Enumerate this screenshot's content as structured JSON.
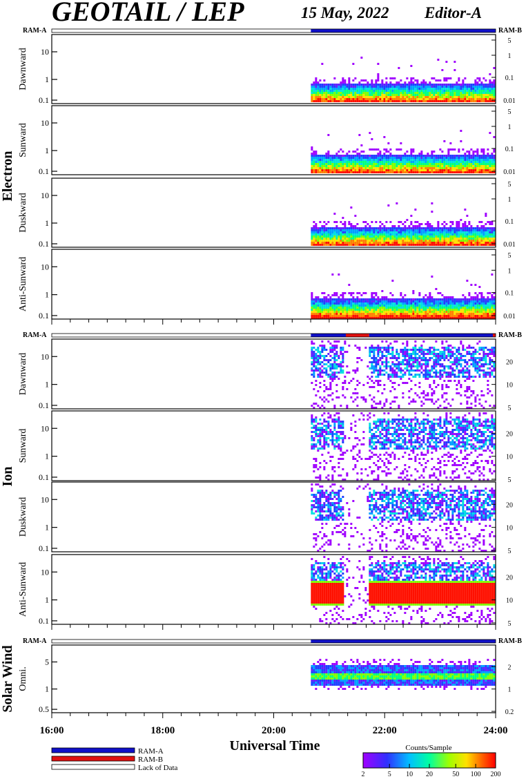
{
  "header": {
    "title": "GEOTAIL / LEP",
    "date": "15 May, 2022",
    "editor": "Editor-A"
  },
  "groups": [
    {
      "name": "Electron",
      "ram_left": "RAM-A",
      "ram_right": "RAM-B"
    },
    {
      "name": "Ion",
      "ram_left": "RAM-A",
      "ram_right": "RAM-B"
    },
    {
      "name": "Solar Wind",
      "ram_left": "RAM-A",
      "ram_right": "RAM-B"
    }
  ],
  "panels": [
    {
      "group": 0,
      "label": "Dawnward",
      "left_ticks": [
        "10",
        "1",
        "0.1"
      ],
      "right_ticks": [
        "5",
        "1",
        "0.1",
        "0.01"
      ]
    },
    {
      "group": 0,
      "label": "Sunward",
      "left_ticks": [
        "10",
        "1",
        "0.1"
      ],
      "right_ticks": [
        "5",
        "1",
        "0.1",
        "0.01"
      ]
    },
    {
      "group": 0,
      "label": "Duskward",
      "left_ticks": [
        "10",
        "1",
        "0.1"
      ],
      "right_ticks": [
        "5",
        "1",
        "0.1",
        "0.01"
      ]
    },
    {
      "group": 0,
      "label": "Anti-Sunward",
      "left_ticks": [
        "10",
        "1",
        "0.1"
      ],
      "right_ticks": [
        "5",
        "1",
        "0.1",
        "0.01"
      ]
    },
    {
      "group": 1,
      "label": "Dawnward",
      "left_ticks": [
        "10",
        "1",
        "0.1"
      ],
      "right_ticks": [
        "20",
        "10",
        "5"
      ]
    },
    {
      "group": 1,
      "label": "Sunward",
      "left_ticks": [
        "10",
        "1",
        "0.1"
      ],
      "right_ticks": [
        "20",
        "10",
        "5"
      ]
    },
    {
      "group": 1,
      "label": "Duskward",
      "left_ticks": [
        "10",
        "1",
        "0.1"
      ],
      "right_ticks": [
        "20",
        "10",
        "5"
      ]
    },
    {
      "group": 1,
      "label": "Anti-Sunward",
      "left_ticks": [
        "10",
        "1",
        "0.1"
      ],
      "right_ticks": [
        "20",
        "10",
        "5"
      ]
    },
    {
      "group": 2,
      "label": "Omni.",
      "left_ticks": [
        "5",
        "1",
        "0.5"
      ],
      "right_ticks": [
        "2",
        "1",
        "0.2"
      ]
    }
  ],
  "chart_data": {
    "type": "heatmap",
    "x_axis": {
      "label": "Universal Time",
      "ticks": [
        "16:00",
        "18:00",
        "20:00",
        "22:00",
        "24:00"
      ],
      "range_hours": [
        16,
        24
      ]
    },
    "data_coverage": {
      "start_hour": 20.67,
      "end_hour": 24.0
    },
    "ram_status": {
      "electron": [
        {
          "start": 16.0,
          "end": 20.67,
          "state": "Lack of Data"
        },
        {
          "start": 20.67,
          "end": 24.0,
          "state": "RAM-A"
        }
      ],
      "ion": [
        {
          "start": 16.0,
          "end": 20.67,
          "state": "Lack of Data"
        },
        {
          "start": 20.67,
          "end": 21.3,
          "state": "RAM-A"
        },
        {
          "start": 21.3,
          "end": 21.72,
          "state": "RAM-B"
        },
        {
          "start": 21.72,
          "end": 23.95,
          "state": "RAM-A"
        },
        {
          "start": 23.95,
          "end": 24.0,
          "state": "RAM-B"
        }
      ],
      "solar_wind": [
        {
          "start": 16.0,
          "end": 20.67,
          "state": "Lack of Data"
        },
        {
          "start": 20.67,
          "end": 24.0,
          "state": "RAM-A"
        }
      ]
    },
    "legend": {
      "items": [
        {
          "label": "RAM-A",
          "color": "#1010c8"
        },
        {
          "label": "RAM-B",
          "color": "#e01010"
        },
        {
          "label": "Lack of Data",
          "color": "#ffffff"
        }
      ]
    },
    "colorbar": {
      "title": "Counts/Sample",
      "ticks": [
        "2",
        "5",
        "10",
        "20",
        "50",
        "100",
        "200"
      ],
      "range": [
        2,
        200
      ],
      "scale": "log"
    }
  }
}
